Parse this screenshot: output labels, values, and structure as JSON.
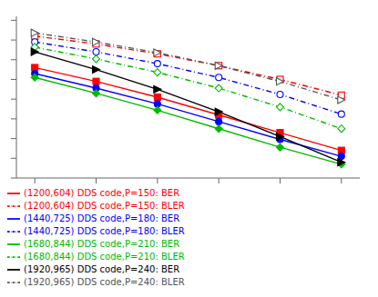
{
  "chart_data": {
    "type": "line",
    "x": [
      1,
      2,
      3,
      4,
      5,
      6
    ],
    "series": [
      {
        "name": "(1200,604) DDS code,P=150: BER",
        "color": "#ff0000",
        "marker": "square",
        "line_style": "solid",
        "values": [
          0.23,
          0.195,
          0.155,
          0.11,
          0.065,
          0.02
        ]
      },
      {
        "name": "(1200,604) DDS code,P=150: BLER",
        "color": "#ff0000",
        "marker": "open_square",
        "line_style": "dashdot",
        "values": [
          0.31,
          0.29,
          0.265,
          0.235,
          0.2,
          0.16
        ]
      },
      {
        "name": "(1440,725) DDS code,P=180: BER",
        "color": "#0000ff",
        "marker": "circle",
        "line_style": "solid",
        "values": [
          0.215,
          0.178,
          0.138,
          0.093,
          0.048,
          0.005
        ]
      },
      {
        "name": "(1440,725) DDS code,P=180: BLER",
        "color": "#0000ff",
        "marker": "open_circle",
        "line_style": "dashdot",
        "values": [
          0.295,
          0.27,
          0.24,
          0.205,
          0.162,
          0.112
        ]
      },
      {
        "name": "(1680,844) DDS code,P=210: BER",
        "color": "#00bb00",
        "marker": "diamond",
        "line_style": "solid",
        "values": [
          0.205,
          0.165,
          0.122,
          0.075,
          0.028,
          -0.015
        ]
      },
      {
        "name": "(1680,844) DDS code,P=210: BLER",
        "color": "#00bb00",
        "marker": "open_diamond",
        "line_style": "dashdot",
        "values": [
          0.282,
          0.252,
          0.218,
          0.178,
          0.13,
          0.075
        ]
      },
      {
        "name": "(1920,965) DDS code,P=240: BER",
        "color": "#000000",
        "marker": "triangle_right",
        "line_style": "solid",
        "values": [
          0.27,
          0.225,
          0.175,
          0.118,
          0.055,
          -0.01
        ]
      },
      {
        "name": "(1920,965) DDS code,P=240: BLER",
        "color": "#555555",
        "marker": "open_triangle_right",
        "line_style": "dashdot",
        "values": [
          0.318,
          0.295,
          0.268,
          0.235,
          0.195,
          0.148
        ]
      }
    ],
    "xlim": [
      0.7,
      6.3
    ],
    "xticks": [
      1,
      2,
      3,
      4,
      5,
      6
    ],
    "ylim": [
      -0.05,
      0.36
    ],
    "yticks": [
      -0.05,
      0,
      0.05,
      0.1,
      0.15,
      0.2,
      0.25,
      0.3,
      0.35
    ],
    "tick_labels": false,
    "grid": false,
    "legend": "lower left"
  }
}
